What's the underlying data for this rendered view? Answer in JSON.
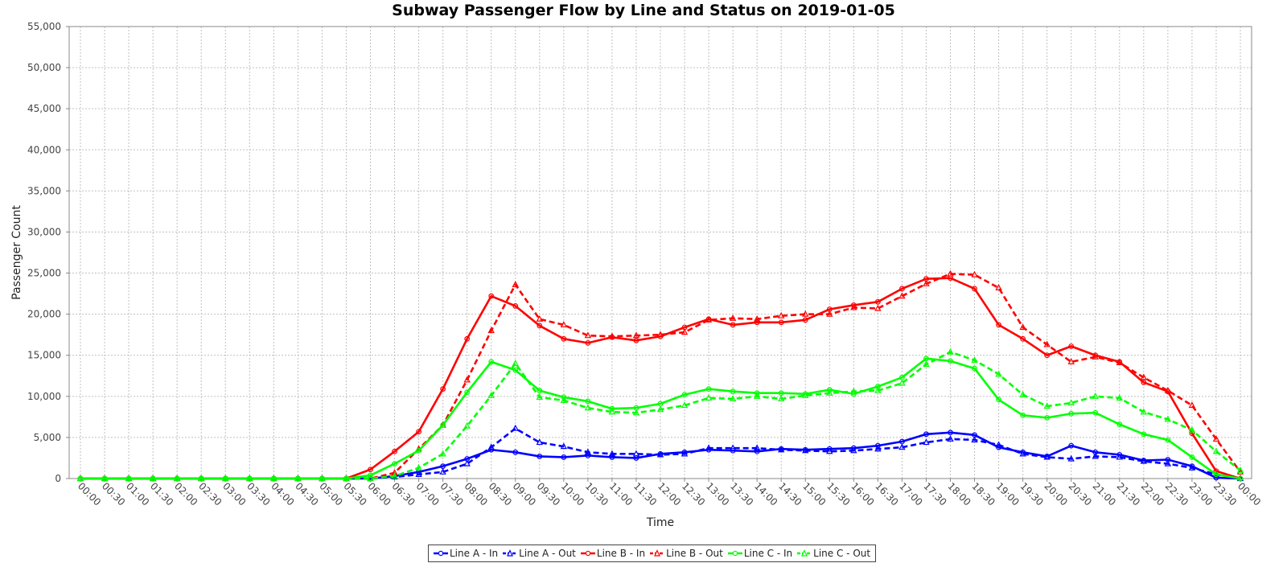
{
  "chart_data": {
    "type": "line",
    "title": "Subway Passenger Flow by Line and Status on 2019-01-05",
    "xlabel": "Time",
    "ylabel": "Passenger Count",
    "ylim": [
      0,
      55000
    ],
    "yticks": [
      0,
      5000,
      10000,
      15000,
      20000,
      25000,
      30000,
      35000,
      40000,
      45000,
      50000,
      55000
    ],
    "ytick_labels": [
      "0",
      "5,000",
      "10,000",
      "15,000",
      "20,000",
      "25,000",
      "30,000",
      "35,000",
      "40,000",
      "45,000",
      "50,000",
      "55,000"
    ],
    "x": [
      "00:00",
      "00:30",
      "01:00",
      "01:30",
      "02:00",
      "02:30",
      "03:00",
      "03:30",
      "04:00",
      "04:30",
      "05:00",
      "05:30",
      "06:00",
      "06:30",
      "07:00",
      "07:30",
      "08:00",
      "08:30",
      "09:00",
      "09:30",
      "10:00",
      "10:30",
      "11:00",
      "11:30",
      "12:00",
      "12:30",
      "13:00",
      "13:30",
      "14:00",
      "14:30",
      "15:00",
      "15:30",
      "16:00",
      "16:30",
      "17:00",
      "17:30",
      "18:00",
      "18:30",
      "19:00",
      "19:30",
      "20:00",
      "20:30",
      "21:00",
      "21:30",
      "22:00",
      "22:30",
      "23:00",
      "23:30",
      "00:00"
    ],
    "grid": true,
    "legend_position": "bottom",
    "series": [
      {
        "name": "Line A - In",
        "color": "#0000ff",
        "dashed": false,
        "marker": "circle",
        "values": [
          0,
          0,
          0,
          0,
          0,
          0,
          0,
          0,
          0,
          0,
          0,
          0,
          0,
          300,
          800,
          1500,
          2400,
          3500,
          3200,
          2700,
          2600,
          2800,
          2600,
          2500,
          3000,
          3200,
          3500,
          3400,
          3300,
          3600,
          3500,
          3600,
          3700,
          4000,
          4500,
          5400,
          5600,
          5300,
          3800,
          3200,
          2700,
          4000,
          3200,
          2900,
          2200,
          2300,
          1500,
          100,
          0
        ]
      },
      {
        "name": "Line A - Out",
        "color": "#0000ff",
        "dashed": true,
        "marker": "triangle",
        "values": [
          0,
          0,
          0,
          0,
          0,
          0,
          0,
          0,
          0,
          0,
          0,
          0,
          0,
          200,
          500,
          800,
          1800,
          3800,
          6100,
          4400,
          3900,
          3200,
          3000,
          3000,
          2900,
          3000,
          3700,
          3700,
          3700,
          3500,
          3400,
          3300,
          3400,
          3600,
          3800,
          4400,
          4800,
          4700,
          4100,
          3000,
          2600,
          2400,
          2700,
          2600,
          2100,
          1800,
          1300,
          500,
          0
        ]
      },
      {
        "name": "Line B - In",
        "color": "#ff0000",
        "dashed": false,
        "marker": "circle",
        "values": [
          0,
          0,
          0,
          0,
          0,
          0,
          0,
          0,
          0,
          0,
          0,
          0,
          1100,
          3300,
          5700,
          10900,
          17000,
          22200,
          21000,
          18600,
          17000,
          16500,
          17200,
          16800,
          17300,
          18400,
          19400,
          18700,
          19000,
          19000,
          19300,
          20600,
          21100,
          21500,
          23100,
          24300,
          24400,
          23100,
          18700,
          17000,
          15000,
          16100,
          15000,
          14200,
          11700,
          10600,
          5500,
          900,
          0
        ]
      },
      {
        "name": "Line B - Out",
        "color": "#ff0000",
        "dashed": true,
        "marker": "triangle",
        "values": [
          0,
          0,
          0,
          0,
          0,
          0,
          0,
          0,
          0,
          0,
          0,
          0,
          0,
          700,
          3600,
          6500,
          12000,
          18000,
          23600,
          19400,
          18700,
          17400,
          17300,
          17400,
          17500,
          17800,
          19300,
          19500,
          19400,
          19800,
          20000,
          20000,
          20800,
          20700,
          22200,
          23700,
          24900,
          24800,
          23200,
          18400,
          16300,
          14200,
          14800,
          14100,
          12300,
          10700,
          8900,
          4800,
          800
        ]
      },
      {
        "name": "Line C - In",
        "color": "#00ff00",
        "dashed": false,
        "marker": "circle",
        "values": [
          0,
          0,
          0,
          0,
          0,
          0,
          0,
          0,
          0,
          0,
          0,
          0,
          400,
          1800,
          3400,
          6500,
          10500,
          14200,
          13200,
          10700,
          9900,
          9400,
          8500,
          8600,
          9100,
          10200,
          10900,
          10600,
          10400,
          10400,
          10300,
          10800,
          10300,
          11200,
          12300,
          14600,
          14300,
          13400,
          9600,
          7700,
          7400,
          7900,
          8000,
          6600,
          5400,
          4700,
          2600,
          500,
          0
        ]
      },
      {
        "name": "Line C - Out",
        "color": "#00ff00",
        "dashed": true,
        "marker": "triangle",
        "values": [
          0,
          0,
          0,
          0,
          0,
          0,
          0,
          0,
          0,
          0,
          0,
          0,
          0,
          300,
          1300,
          3000,
          6400,
          10100,
          14000,
          9900,
          9500,
          8600,
          8100,
          8000,
          8400,
          8900,
          9800,
          9700,
          10000,
          9700,
          10100,
          10400,
          10600,
          10700,
          11600,
          13900,
          15400,
          14400,
          12700,
          10200,
          8800,
          9200,
          10000,
          9800,
          8100,
          7200,
          5900,
          3300,
          1000
        ]
      }
    ]
  }
}
